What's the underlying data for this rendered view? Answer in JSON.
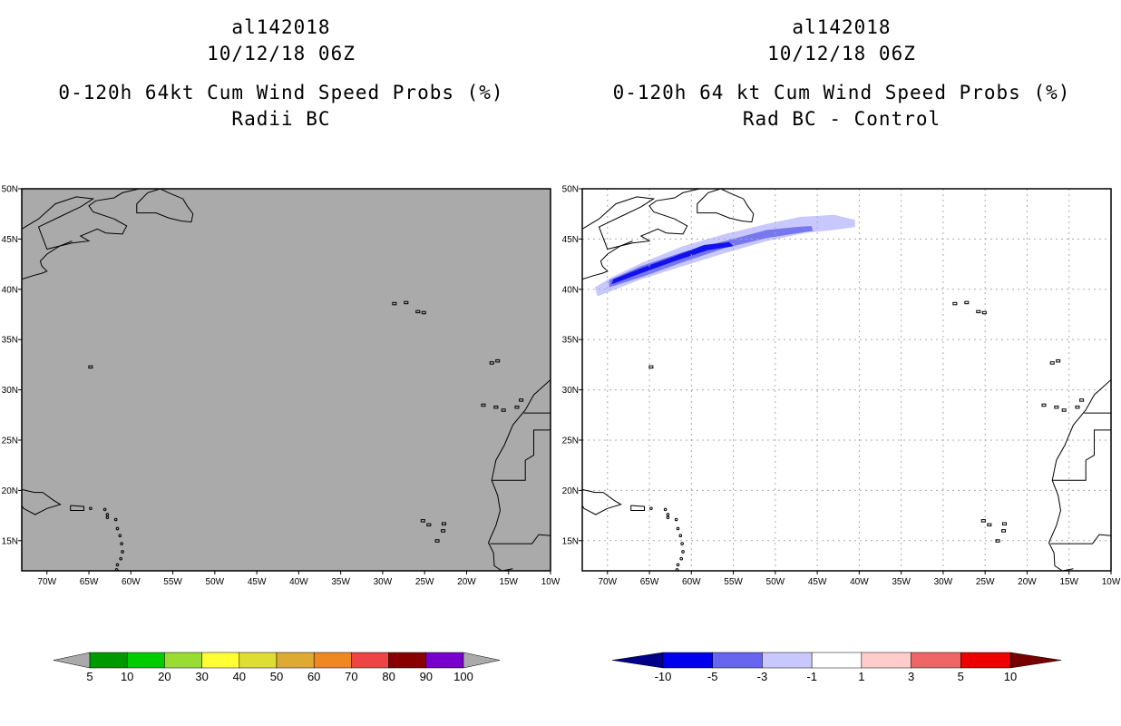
{
  "left_panel": {
    "title_lines": [
      "al142018",
      "10/12/18 06Z",
      "0-120h 64kt Cum Wind Speed Probs (%)",
      "Radii BC"
    ]
  },
  "right_panel": {
    "title_lines": [
      "al142018",
      "10/12/18 06Z",
      "0-120h 64 kt Cum Wind Speed Probs (%)",
      "Rad BC - Control"
    ]
  },
  "chart_data": [
    {
      "type": "heatmap",
      "title": "0-120h 64kt Cum Wind Speed Probs (%)",
      "subtitle": "Radii BC",
      "storm_id": "al142018",
      "valid_time": "10/12/18 06Z",
      "lon_range": [
        -73,
        -10
      ],
      "lat_range": [
        12,
        50
      ],
      "x_ticks": [
        -70,
        -65,
        -60,
        -55,
        -50,
        -45,
        -40,
        -35,
        -30,
        -25,
        -20,
        -15,
        -10
      ],
      "x_tick_labels": [
        "70W",
        "65W",
        "60W",
        "55W",
        "50W",
        "45W",
        "40W",
        "35W",
        "30W",
        "25W",
        "20W",
        "15W",
        "10W"
      ],
      "y_ticks": [
        15,
        20,
        25,
        30,
        35,
        40,
        45,
        50
      ],
      "y_tick_labels": [
        "15N",
        "20N",
        "25N",
        "30N",
        "35N",
        "40N",
        "45N",
        "50N"
      ],
      "grid": false,
      "background": "#aaaaaa",
      "field_note": "no probability exceeds 5%",
      "colorbar": {
        "labels": [
          "5",
          "10",
          "20",
          "30",
          "40",
          "50",
          "60",
          "70",
          "80",
          "90",
          "100"
        ],
        "end_color_low": "#aaaaaa",
        "end_color_high": "#aaaaaa",
        "colors": [
          "#009900",
          "#00cc00",
          "#99dd33",
          "#ffff33",
          "#dddd33",
          "#ddaa33",
          "#ee8822",
          "#ee4444",
          "#880000",
          "#7700cc"
        ]
      }
    },
    {
      "type": "heatmap",
      "title": "0-120h 64 kt Cum Wind Speed Probs (%)",
      "subtitle": "Rad BC - Control",
      "storm_id": "al142018",
      "valid_time": "10/12/18 06Z",
      "lon_range": [
        -73,
        -10
      ],
      "lat_range": [
        12,
        50
      ],
      "x_ticks": [
        -70,
        -65,
        -60,
        -55,
        -50,
        -45,
        -40,
        -35,
        -30,
        -25,
        -20,
        -15,
        -10
      ],
      "x_tick_labels": [
        "70W",
        "65W",
        "60W",
        "55W",
        "50W",
        "45W",
        "40W",
        "35W",
        "30W",
        "25W",
        "20W",
        "15W",
        "10W"
      ],
      "y_ticks": [
        15,
        20,
        25,
        30,
        35,
        40,
        45,
        50
      ],
      "y_tick_labels": [
        "15N",
        "20N",
        "25N",
        "30N",
        "35N",
        "40N",
        "45N",
        "50N"
      ],
      "grid": true,
      "background": "#ffffff",
      "field_note": "negative difference swath along the track from about 70W,40N to 40W,46N",
      "swath": [
        {
          "level": "-3 to -1",
          "color": "#c8c8ff",
          "polygon": [
            [
              -71.2,
              39.3
            ],
            [
              -69,
              40
            ],
            [
              -66,
              41
            ],
            [
              -61,
              42.3
            ],
            [
              -56,
              43.6
            ],
            [
              -51,
              44.8
            ],
            [
              -46.5,
              45.6
            ],
            [
              -43,
              45.9
            ],
            [
              -40.5,
              46.2
            ],
            [
              -40.5,
              46.9
            ],
            [
              -43,
              47.4
            ],
            [
              -47,
              47.2
            ],
            [
              -51,
              46.5
            ],
            [
              -56,
              45.5
            ],
            [
              -61,
              44.3
            ],
            [
              -66,
              42.6
            ],
            [
              -69.5,
              41.2
            ],
            [
              -71.5,
              40.2
            ]
          ]
        },
        {
          "level": "-5 to -3",
          "color": "#7777ee",
          "polygon": [
            [
              -69.8,
              40.2
            ],
            [
              -66,
              41.2
            ],
            [
              -61,
              42.7
            ],
            [
              -56,
              44.1
            ],
            [
              -51,
              45.1
            ],
            [
              -47.2,
              45.6
            ],
            [
              -45.5,
              45.8
            ],
            [
              -45.7,
              46.3
            ],
            [
              -47.5,
              46.2
            ],
            [
              -51,
              45.9
            ],
            [
              -56,
              44.8
            ],
            [
              -61,
              43.7
            ],
            [
              -66,
              42.3
            ],
            [
              -69.8,
              40.9
            ]
          ]
        },
        {
          "level": "-10 to -5",
          "color": "#1111ee",
          "polygon": [
            [
              -69.5,
              40.5
            ],
            [
              -66,
              41.6
            ],
            [
              -62,
              42.8
            ],
            [
              -58,
              43.9
            ],
            [
              -55,
              44.3
            ],
            [
              -55.5,
              44.7
            ],
            [
              -58.5,
              44.4
            ],
            [
              -62,
              43.3
            ],
            [
              -66,
              42.1
            ],
            [
              -69.3,
              41
            ]
          ]
        }
      ],
      "colorbar": {
        "labels": [
          "-10",
          "-5",
          "-3",
          "-1",
          "1",
          "3",
          "5",
          "10"
        ],
        "end_color_low": "#000088",
        "end_color_high": "#770000",
        "colors": [
          "#0000ee",
          "#6666ee",
          "#c8c8ff",
          "#ffffff",
          "#ffcccc",
          "#ee6666",
          "#ee0000"
        ]
      }
    }
  ],
  "coastlines": {
    "note": "approximate land outlines (lon, lat)",
    "north_america": [
      [
        [
          -73,
          46
        ],
        [
          -71,
          47
        ],
        [
          -69,
          48.5
        ],
        [
          -66.5,
          49.2
        ],
        [
          -64.5,
          49
        ],
        [
          -66,
          48.2
        ],
        [
          -68.5,
          47.2
        ],
        [
          -71,
          46.2
        ],
        [
          -70,
          44
        ],
        [
          -67,
          44.6
        ],
        [
          -65,
          44.8
        ],
        [
          -66,
          45.3
        ],
        [
          -64,
          46
        ],
        [
          -63,
          45.6
        ],
        [
          -61,
          45.5
        ],
        [
          -60.5,
          46.3
        ],
        [
          -62,
          47
        ],
        [
          -64.5,
          47.7
        ],
        [
          -65,
          48.3
        ],
        [
          -64.2,
          48.8
        ],
        [
          -62,
          49.1
        ],
        [
          -61,
          49.6
        ],
        [
          -59,
          50
        ]
      ],
      [
        [
          -73,
          41
        ],
        [
          -71.5,
          41.4
        ],
        [
          -70.6,
          41.6
        ],
        [
          -70,
          41.8
        ],
        [
          -70.6,
          42.3
        ],
        [
          -70.8,
          42.8
        ],
        [
          -70,
          43.5
        ],
        [
          -68.5,
          44.3
        ],
        [
          -67,
          44.8
        ]
      ]
    ],
    "newfoundland": [
      [
        [
          -59.3,
          47.6
        ],
        [
          -57,
          47.6
        ],
        [
          -55.5,
          47.1
        ],
        [
          -54,
          46.8
        ],
        [
          -52.8,
          46.7
        ],
        [
          -52.6,
          47.5
        ],
        [
          -53.3,
          48.3
        ],
        [
          -53.8,
          49
        ],
        [
          -55.5,
          49.6
        ],
        [
          -56.5,
          50
        ],
        [
          -58,
          49.6
        ],
        [
          -59.3,
          48.5
        ],
        [
          -59.3,
          47.6
        ]
      ]
    ],
    "cuba_hispaniola": [
      [
        [
          -73,
          20.1
        ],
        [
          -71.5,
          19.8
        ],
        [
          -70.5,
          19.8
        ],
        [
          -69.2,
          19
        ],
        [
          -68.4,
          18.6
        ],
        [
          -70,
          18.2
        ],
        [
          -71.4,
          17.6
        ],
        [
          -72.8,
          18.2
        ],
        [
          -73,
          18.5
        ]
      ],
      [
        [
          -67.2,
          18.5
        ],
        [
          -65.6,
          18.4
        ],
        [
          -65.6,
          18
        ],
        [
          -67.2,
          18
        ],
        [
          -67.2,
          18.5
        ]
      ]
    ],
    "lesser_antilles": [
      [
        -64.8,
        18.2
      ],
      [
        -63.1,
        18.1
      ],
      [
        -62.8,
        17.6
      ],
      [
        -61.8,
        17.1
      ],
      [
        -61.6,
        16.2
      ],
      [
        -61.3,
        15.5
      ],
      [
        -61.1,
        14.7
      ],
      [
        -61,
        13.9
      ],
      [
        -61.2,
        13.2
      ],
      [
        -61.7,
        12.1
      ],
      [
        -61.6,
        12.6
      ],
      [
        -62.8,
        17.3
      ]
    ],
    "africa": [
      [
        -10,
        31
      ],
      [
        -12,
        29.5
      ],
      [
        -13,
        28
      ],
      [
        -14.5,
        26.5
      ],
      [
        -15.5,
        24.5
      ],
      [
        -16.5,
        23
      ],
      [
        -17,
        21
      ],
      [
        -16.3,
        19.5
      ],
      [
        -16,
        18
      ],
      [
        -16.5,
        16.5
      ],
      [
        -17.4,
        14.8
      ],
      [
        -16.8,
        13.8
      ],
      [
        -16.7,
        12.5
      ],
      [
        -15.8,
        12
      ],
      [
        -14.5,
        12.2
      ]
    ],
    "africa_border": [
      [
        [
          -17,
          21
        ],
        [
          -13,
          21
        ],
        [
          -13,
          23
        ],
        [
          -12,
          23.5
        ],
        [
          -12,
          26
        ],
        [
          -8.7,
          26
        ]
      ],
      [
        [
          -13.2,
          27.7
        ],
        [
          -8.7,
          27.7
        ]
      ],
      [
        [
          -17.2,
          14.7
        ],
        [
          -12.2,
          14.7
        ],
        [
          -11.4,
          15.6
        ],
        [
          -10,
          15.5
        ]
      ]
    ],
    "azores": [
      [
        -28.6,
        38.6
      ],
      [
        -27.2,
        38.7
      ],
      [
        -25.8,
        37.8
      ],
      [
        -25.1,
        37.7
      ]
    ],
    "canaries": [
      [
        -18,
        28.5
      ],
      [
        -16.5,
        28.3
      ],
      [
        -15.6,
        28
      ],
      [
        -14,
        28.3
      ],
      [
        -13.5,
        29
      ]
    ],
    "madeira": [
      [
        -17,
        32.7
      ],
      [
        -16.3,
        32.9
      ]
    ],
    "cape_verde": [
      [
        -25.2,
        17
      ],
      [
        -24.5,
        16.6
      ],
      [
        -23.5,
        15
      ],
      [
        -22.8,
        16
      ],
      [
        -22.7,
        16.7
      ]
    ],
    "bermuda": [
      [
        -64.8,
        32.3
      ]
    ]
  }
}
